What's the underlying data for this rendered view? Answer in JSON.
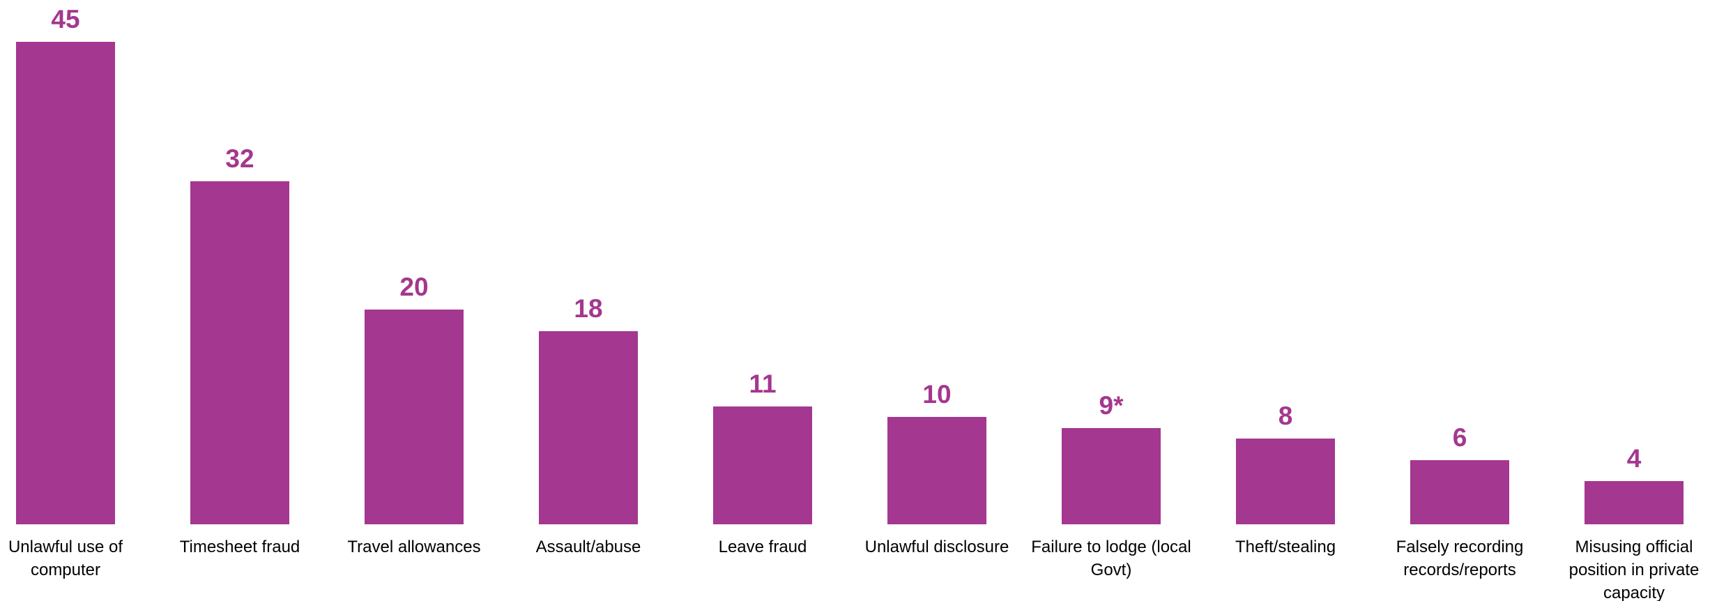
{
  "chart_data": {
    "type": "bar",
    "categories": [
      "Unlawful use of computer",
      "Timesheet fraud",
      "Travel allowances",
      "Assault/abuse",
      "Leave fraud",
      "Unlawful disclosure",
      "Failure to lodge (local Govt)",
      "Theft/stealing",
      "Falsely recording records/reports",
      "Misusing official position in private capacity"
    ],
    "values": [
      45,
      32,
      20,
      18,
      11,
      10,
      9,
      8,
      6,
      4
    ],
    "value_labels": [
      "45",
      "32",
      "20",
      "18",
      "11",
      "10",
      "9*",
      "8",
      "6",
      "4"
    ],
    "color": "#a4378f"
  }
}
